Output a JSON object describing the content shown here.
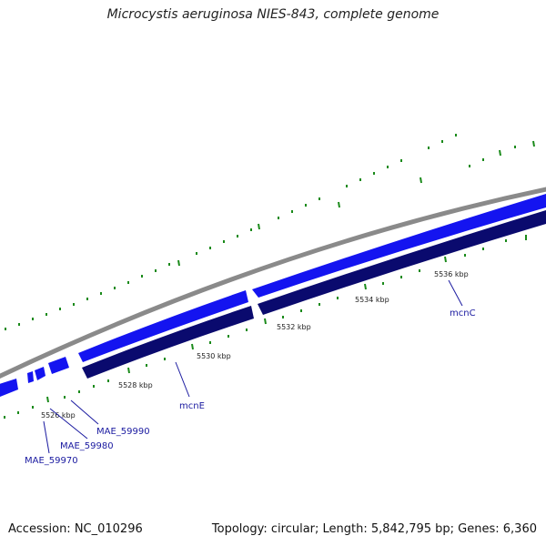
{
  "title": "Microcystis aeruginosa NIES-843, complete genome",
  "accession": "Accession: NC_010296",
  "summary": "Topology: circular; Length: 5,842,795 bp; Genes: 6,360",
  "colors": {
    "backbone": "#8a8a8a",
    "forward_gene": "#1414f0",
    "reverse_gene": "#0a0a6e",
    "tick": "#1a8a1a",
    "label": "#1a1aa0"
  },
  "ticks": [
    {
      "label": "5526 kbp"
    },
    {
      "label": "5528 kbp"
    },
    {
      "label": "5530 kbp"
    },
    {
      "label": "5532 kbp"
    },
    {
      "label": "5534 kbp"
    },
    {
      "label": "5536 kbp"
    }
  ],
  "genes": [
    {
      "name": "MAE_59970"
    },
    {
      "name": "MAE_59980"
    },
    {
      "name": "MAE_59990"
    },
    {
      "name": "mcnE"
    },
    {
      "name": "mcnC"
    }
  ]
}
